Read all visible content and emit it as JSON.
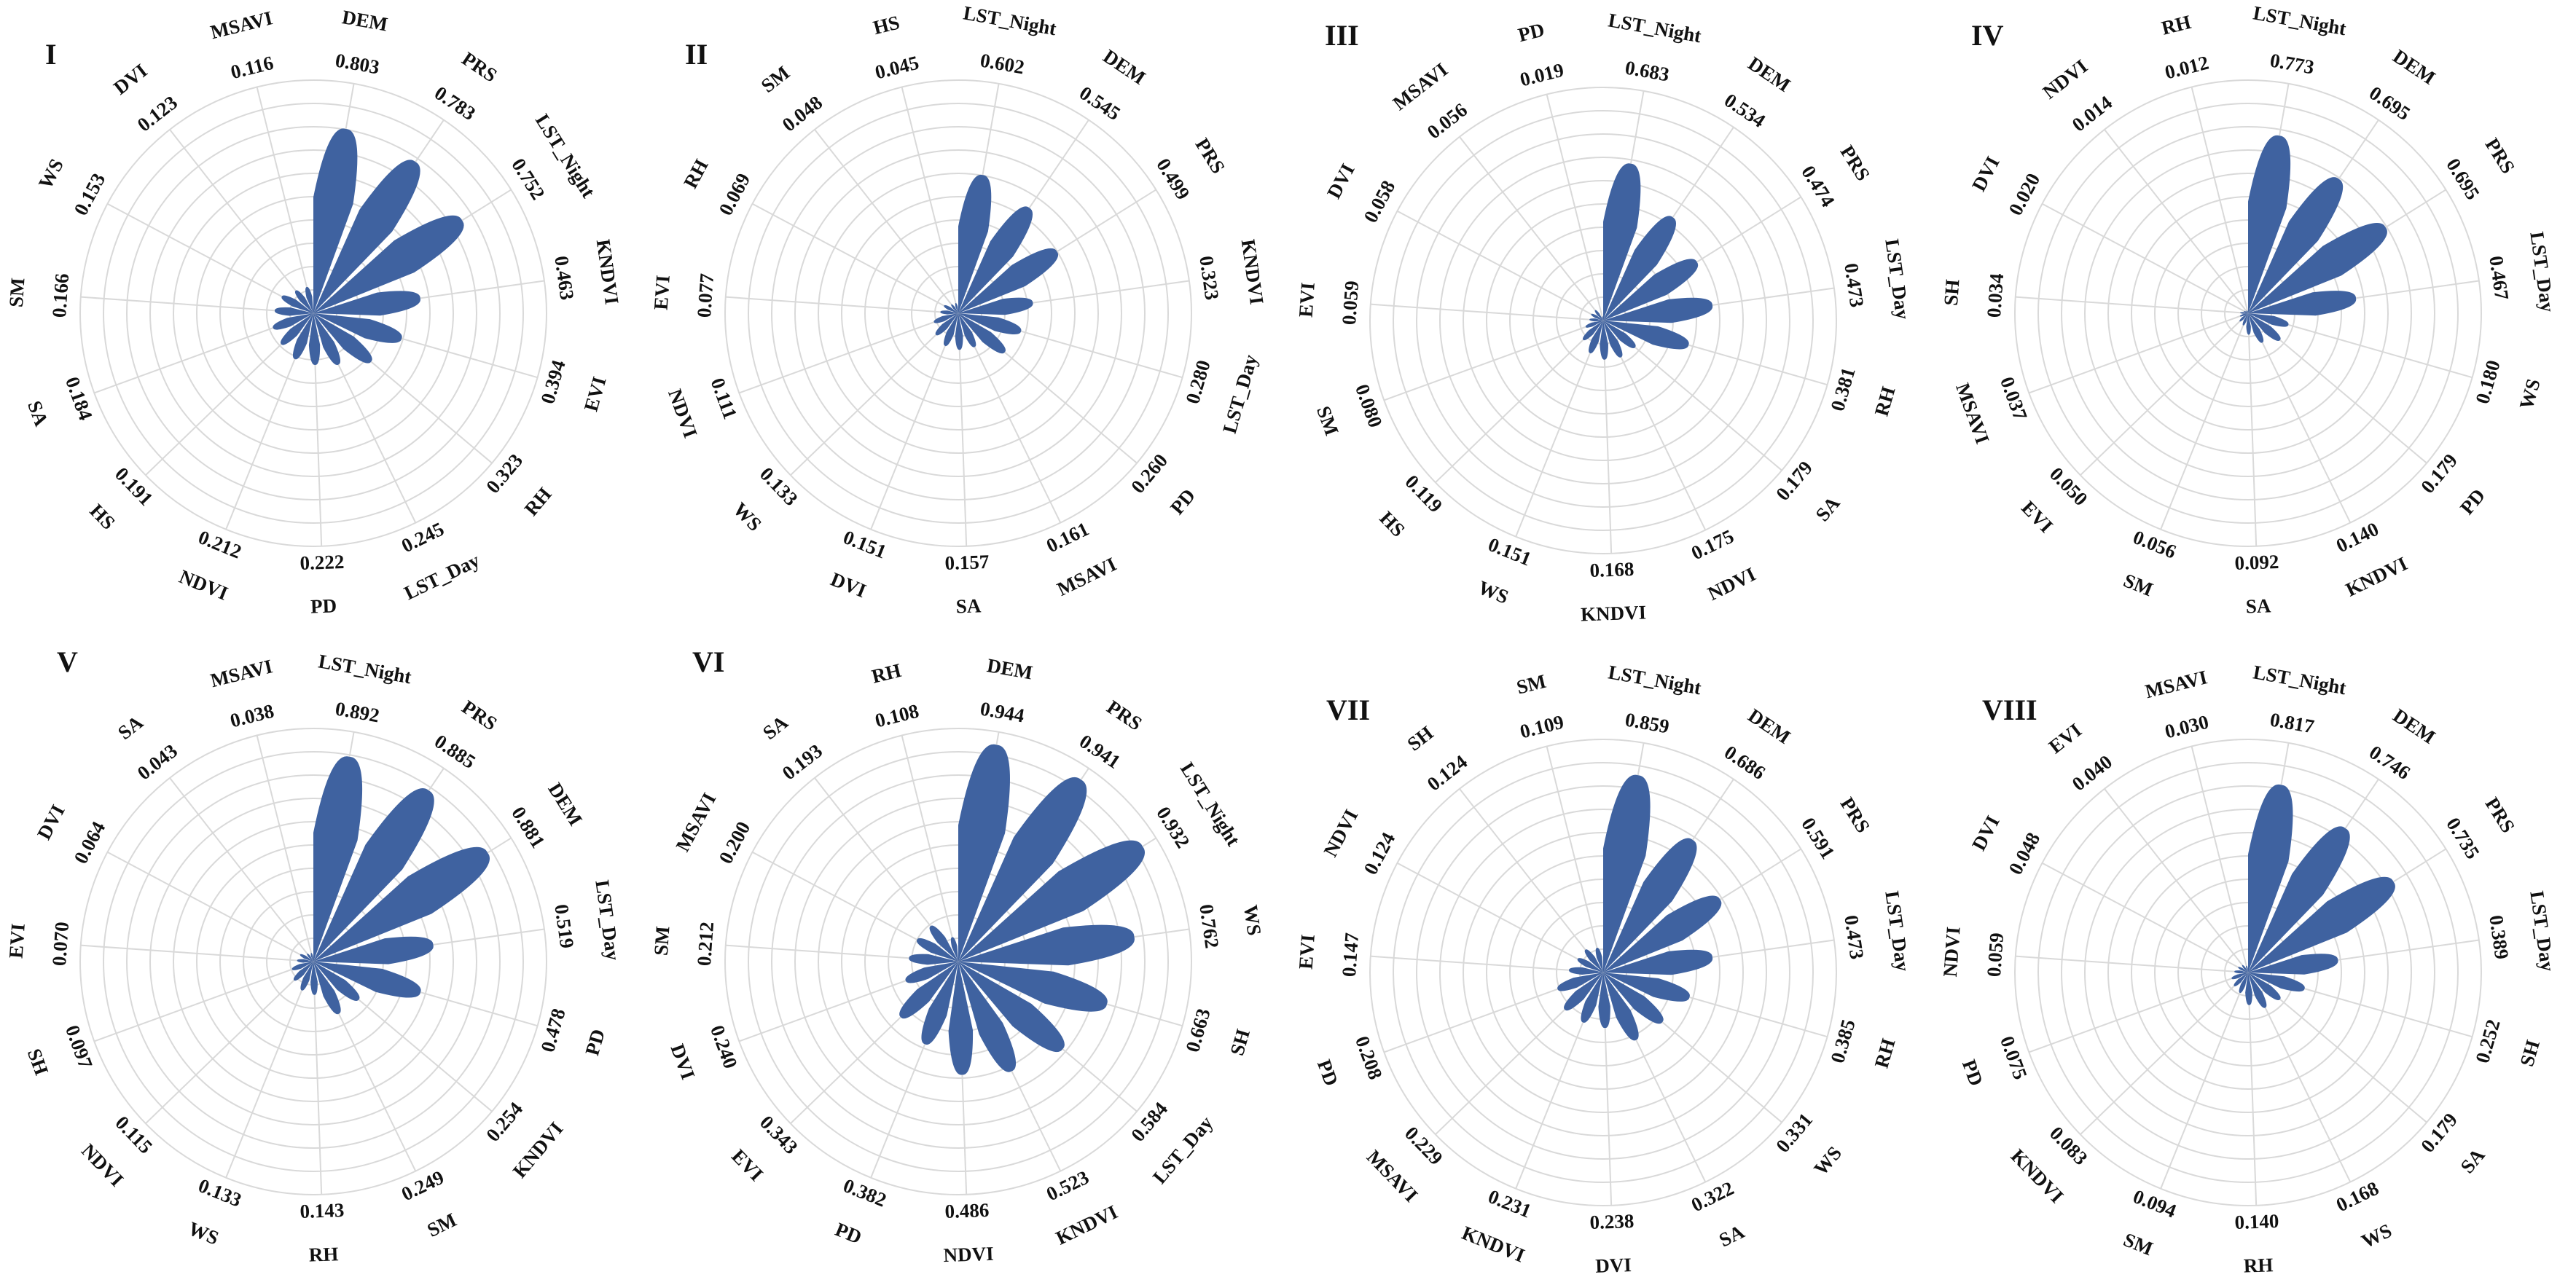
{
  "colors": {
    "petal": "#3f62a0",
    "grid": "#d9d9d9",
    "text": "#111111"
  },
  "chart_data": [
    {
      "type": "radial_bar",
      "panel": "I",
      "grid": true,
      "rmax": 1.0,
      "categories": [
        "DEM",
        "PRS",
        "LST_Night",
        "KNDVI",
        "EVI",
        "RH",
        "LST_Day",
        "PD",
        "NDVI",
        "HS",
        "SA",
        "SM",
        "WS",
        "DVI",
        "MSAVI"
      ],
      "values": [
        0.803,
        0.783,
        0.752,
        0.463,
        0.394,
        0.323,
        0.245,
        0.222,
        0.212,
        0.191,
        0.184,
        0.166,
        0.153,
        0.123,
        0.116
      ]
    },
    {
      "type": "radial_bar",
      "panel": "II",
      "grid": true,
      "rmax": 1.0,
      "categories": [
        "LST_Night",
        "DEM",
        "PRS",
        "KNDVI",
        "LST_Day",
        "PD",
        "MSAVI",
        "SA",
        "DVI",
        "WS",
        "NDVI",
        "EVI",
        "RH",
        "SM",
        "HS"
      ],
      "values": [
        0.602,
        0.545,
        0.499,
        0.323,
        0.28,
        0.26,
        0.161,
        0.157,
        0.151,
        0.133,
        0.111,
        0.077,
        0.069,
        0.048,
        0.045
      ]
    },
    {
      "type": "radial_bar",
      "panel": "III",
      "grid": true,
      "rmax": 1.0,
      "categories": [
        "LST_Night",
        "DEM",
        "PRS",
        "LST_Day",
        "RH",
        "SA",
        "NDVI",
        "KNDVI",
        "WS",
        "HS",
        "SM",
        "EVI",
        "DVI",
        "MSAVI",
        "PD"
      ],
      "values": [
        0.683,
        0.534,
        0.474,
        0.473,
        0.381,
        0.179,
        0.175,
        0.168,
        0.151,
        0.119,
        0.08,
        0.059,
        0.058,
        0.056,
        0.019
      ]
    },
    {
      "type": "radial_bar",
      "panel": "IV",
      "grid": true,
      "rmax": 1.0,
      "categories": [
        "LST_Night",
        "DEM",
        "PRS",
        "LST_Day",
        "WS",
        "PD",
        "KNDVI",
        "SA",
        "SM",
        "EVI",
        "MSAVI",
        "SH",
        "DVI",
        "NDVI",
        "RH"
      ],
      "values": [
        0.773,
        0.695,
        0.695,
        0.467,
        0.18,
        0.179,
        0.14,
        0.092,
        0.056,
        0.05,
        0.037,
        0.034,
        0.02,
        0.014,
        0.012
      ]
    },
    {
      "type": "radial_bar",
      "panel": "V",
      "grid": true,
      "rmax": 1.0,
      "categories": [
        "LST_Night",
        "PRS",
        "DEM",
        "LST_Day",
        "PD",
        "KNDVI",
        "SM",
        "RH",
        "WS",
        "NDVI",
        "SH",
        "EVI",
        "DVI",
        "SA",
        "MSAVI"
      ],
      "values": [
        0.892,
        0.885,
        0.881,
        0.519,
        0.478,
        0.254,
        0.249,
        0.143,
        0.133,
        0.115,
        0.097,
        0.07,
        0.064,
        0.043,
        0.038
      ]
    },
    {
      "type": "radial_bar",
      "panel": "VI",
      "grid": true,
      "rmax": 1.0,
      "categories": [
        "DEM",
        "PRS",
        "LST_Night",
        "WS",
        "SH",
        "LST_Day",
        "KNDVI",
        "NDVI",
        "PD",
        "EVI",
        "DVI",
        "SM",
        "MSAVI",
        "SA",
        "RH"
      ],
      "values": [
        0.944,
        0.941,
        0.932,
        0.762,
        0.663,
        0.584,
        0.523,
        0.486,
        0.382,
        0.343,
        0.24,
        0.212,
        0.2,
        0.193,
        0.108
      ]
    },
    {
      "type": "radial_bar",
      "panel": "VII",
      "grid": true,
      "rmax": 1.0,
      "categories": [
        "LST_Night",
        "DEM",
        "PRS",
        "LST_Day",
        "RH",
        "WS",
        "SA",
        "DVI",
        "KNDVI",
        "MSAVI",
        "PD",
        "EVI",
        "NDVI",
        "SH",
        "SM"
      ],
      "values": [
        0.859,
        0.686,
        0.591,
        0.473,
        0.385,
        0.331,
        0.322,
        0.238,
        0.231,
        0.229,
        0.208,
        0.147,
        0.124,
        0.124,
        0.109
      ]
    },
    {
      "type": "radial_bar",
      "panel": "VIII",
      "grid": true,
      "rmax": 1.0,
      "categories": [
        "LST_Night",
        "DEM",
        "PRS",
        "LST_Day",
        "SH",
        "SA",
        "WS",
        "RH",
        "SM",
        "KNDVI",
        "PD",
        "NDVI",
        "DVI",
        "EVI",
        "MSAVI"
      ],
      "values": [
        0.817,
        0.746,
        0.735,
        0.389,
        0.252,
        0.179,
        0.168,
        0.14,
        0.094,
        0.083,
        0.075,
        0.059,
        0.048,
        0.04,
        0.03
      ]
    }
  ]
}
